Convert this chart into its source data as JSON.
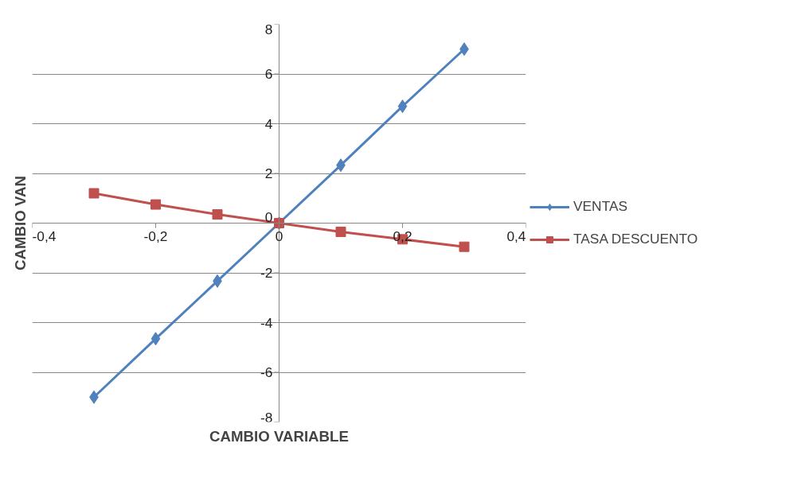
{
  "chart_data": {
    "type": "line",
    "xlabel": "CAMBIO VARIABLE",
    "ylabel": "CAMBIO VAN",
    "x": [
      -0.3,
      -0.2,
      -0.1,
      0,
      0.1,
      0.2,
      0.3
    ],
    "series": [
      {
        "name": "VENTAS",
        "color": "#4f81bd",
        "marker": "diamond",
        "values": [
          -7,
          -4.65,
          -2.33,
          0,
          2.33,
          4.7,
          7
        ]
      },
      {
        "name": "TASA DESCUENTO",
        "color": "#c0504d",
        "marker": "square",
        "values": [
          1.2,
          0.75,
          0.35,
          0,
          -0.35,
          -0.65,
          -0.95
        ]
      }
    ],
    "xlim": [
      -0.4,
      0.4
    ],
    "ylim": [
      -8,
      8
    ],
    "xticks": [
      {
        "value": -0.4,
        "label": "-0,4"
      },
      {
        "value": -0.2,
        "label": "-0,2"
      },
      0,
      {
        "value": 0.2,
        "label": "0,2"
      },
      {
        "value": 0.4,
        "label": "0,4"
      }
    ],
    "yticks": [
      -8,
      -6,
      -4,
      -2,
      0,
      2,
      4,
      6,
      8
    ],
    "grid": "y",
    "legend": "right",
    "line_style": "solid"
  }
}
